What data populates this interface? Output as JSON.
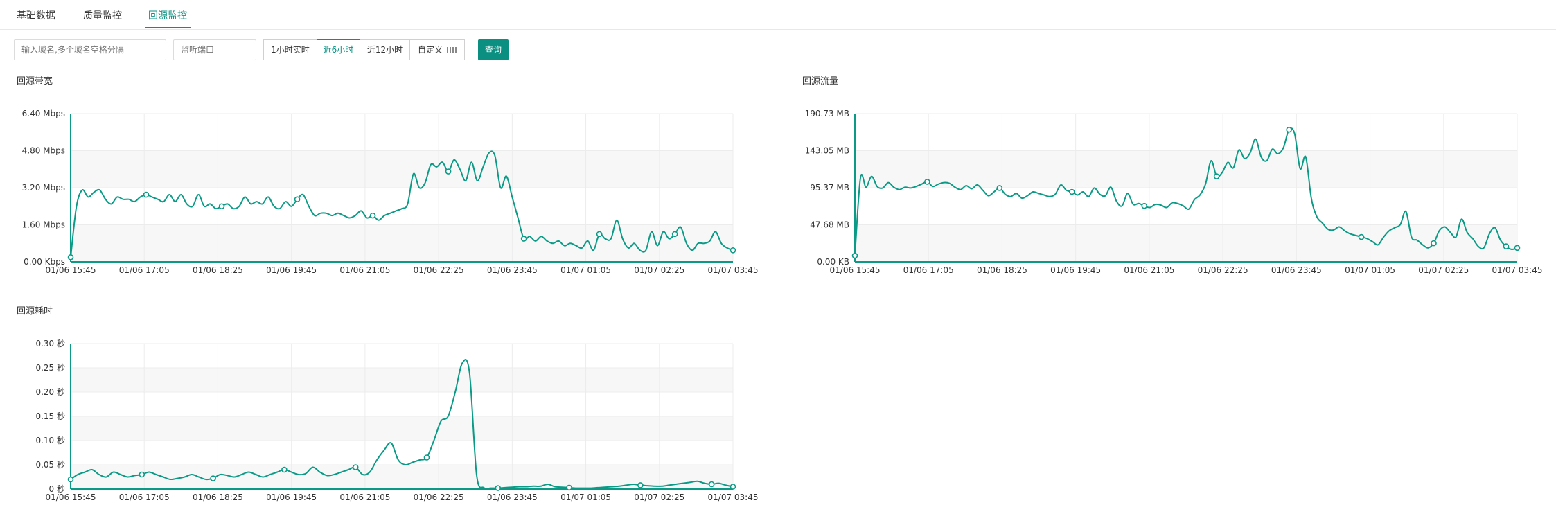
{
  "tabs": [
    {
      "label": "基础数据"
    },
    {
      "label": "质量监控"
    },
    {
      "label": "回源监控"
    }
  ],
  "active_tab": 2,
  "filters": {
    "domain_placeholder": "输入域名,多个域名空格分隔",
    "port_placeholder": "监听端口",
    "ranges": [
      "1小时实时",
      "近6小时",
      "近12小时",
      "自定义"
    ],
    "active_range": 1,
    "query_label": "查询"
  },
  "colors": {
    "accent": "#0a8f80",
    "line": "#0a9a86"
  },
  "chart_data": [
    {
      "type": "line",
      "title": "回源带宽",
      "x_ticks": [
        "01/06 15:45",
        "01/06 17:05",
        "01/06 18:25",
        "01/06 19:45",
        "01/06 21:05",
        "01/06 22:25",
        "01/06 23:45",
        "01/07 01:05",
        "01/07 02:25",
        "01/07 03:45"
      ],
      "y_ticks": [
        "0.00 Kbps",
        "1.60 Mbps",
        "3.20 Mbps",
        "4.80 Mbps",
        "6.40 Mbps"
      ],
      "ylim": [
        0,
        6.4
      ],
      "y_unit": "Mbps",
      "grid": true,
      "series": [
        {
          "values": [
            0.2,
            2.4,
            3.1,
            2.8,
            3.0,
            3.1,
            2.7,
            2.5,
            2.8,
            2.7,
            2.7,
            2.6,
            2.8,
            2.9,
            2.8,
            2.7,
            2.6,
            2.9,
            2.6,
            2.9,
            2.5,
            2.4,
            2.9,
            2.4,
            2.5,
            2.3,
            2.4,
            2.5,
            2.3,
            2.4,
            2.8,
            2.5,
            2.6,
            2.5,
            2.8,
            2.4,
            2.3,
            2.6,
            2.4,
            2.7,
            2.9,
            2.4,
            2.0,
            2.1,
            2.1,
            2.0,
            2.1,
            2.0,
            1.9,
            2.0,
            2.2,
            1.9,
            2.0,
            1.8,
            2.0,
            2.1,
            2.2,
            2.3,
            2.5,
            3.8,
            3.2,
            3.4,
            4.2,
            4.1,
            4.3,
            3.9,
            4.4,
            4.0,
            3.5,
            4.3,
            3.5,
            4.1,
            4.7,
            4.6,
            3.2,
            3.7,
            2.8,
            1.9,
            1.0,
            1.1,
            0.9,
            1.1,
            0.9,
            0.8,
            0.9,
            0.7,
            0.8,
            0.7,
            0.6,
            0.9,
            0.5,
            1.2,
            1.0,
            1.0,
            1.8,
            1.0,
            0.6,
            0.8,
            0.5,
            0.5,
            1.3,
            0.7,
            1.3,
            1.0,
            1.2,
            1.5,
            0.8,
            0.5,
            0.8,
            0.8,
            0.9,
            1.3,
            0.8,
            0.6,
            0.5
          ]
        }
      ],
      "markers": [
        0,
        16,
        32,
        48,
        64,
        80,
        96,
        112,
        128,
        144,
        160,
        176,
        192,
        208,
        224
      ]
    },
    {
      "type": "line",
      "title": "回源流量",
      "x_ticks": [
        "01/06 15:45",
        "01/06 17:05",
        "01/06 18:25",
        "01/06 19:45",
        "01/06 21:05",
        "01/06 22:25",
        "01/06 23:45",
        "01/07 01:05",
        "01/07 02:25",
        "01/07 03:45"
      ],
      "y_ticks": [
        "0.00 KB",
        "47.68 MB",
        "95.37 MB",
        "143.05 MB",
        "190.73 MB"
      ],
      "ylim": [
        0,
        190.73
      ],
      "y_unit": "MB",
      "grid": true,
      "series": [
        {
          "values": [
            8,
            108,
            96,
            110,
            97,
            95,
            102,
            96,
            93,
            96,
            95,
            97,
            100,
            103,
            97,
            100,
            102,
            101,
            96,
            93,
            98,
            94,
            99,
            92,
            85,
            90,
            95,
            87,
            84,
            88,
            82,
            85,
            90,
            88,
            86,
            84,
            87,
            99,
            92,
            90,
            86,
            90,
            84,
            95,
            87,
            85,
            96,
            78,
            72,
            88,
            74,
            75,
            72,
            70,
            74,
            73,
            70,
            76,
            75,
            72,
            68,
            80,
            86,
            100,
            130,
            110,
            115,
            128,
            121,
            144,
            133,
            140,
            158,
            135,
            130,
            145,
            139,
            147,
            170,
            165,
            120,
            135,
            82,
            58,
            50,
            42,
            41,
            45,
            40,
            36,
            34,
            32,
            30,
            26,
            22,
            32,
            40,
            44,
            48,
            65,
            32,
            28,
            22,
            18,
            24,
            40,
            45,
            38,
            32,
            55,
            38,
            30,
            20,
            18,
            36,
            44,
            28,
            20,
            16,
            18
          ]
        }
      ],
      "markers": [
        0,
        16,
        32,
        48,
        64,
        80,
        96,
        112,
        128,
        144,
        160,
        176,
        192,
        208,
        224
      ]
    },
    {
      "type": "line",
      "title": "回源耗时",
      "x_ticks": [
        "01/06 15:45",
        "01/06 17:05",
        "01/06 18:25",
        "01/06 19:45",
        "01/06 21:05",
        "01/06 22:25",
        "01/06 23:45",
        "01/07 01:05",
        "01/07 02:25",
        "01/07 03:45"
      ],
      "y_ticks": [
        "0 秒",
        "0.05 秒",
        "0.10 秒",
        "0.15 秒",
        "0.20 秒",
        "0.25 秒",
        "0.30 秒"
      ],
      "ylim": [
        0,
        0.3
      ],
      "y_unit": "秒",
      "grid": true,
      "series": [
        {
          "values": [
            0.02,
            0.03,
            0.035,
            0.04,
            0.03,
            0.025,
            0.035,
            0.03,
            0.025,
            0.028,
            0.03,
            0.035,
            0.03,
            0.025,
            0.02,
            0.022,
            0.025,
            0.03,
            0.025,
            0.02,
            0.022,
            0.03,
            0.028,
            0.025,
            0.03,
            0.035,
            0.03,
            0.025,
            0.03,
            0.035,
            0.04,
            0.035,
            0.03,
            0.032,
            0.045,
            0.035,
            0.028,
            0.03,
            0.035,
            0.04,
            0.045,
            0.03,
            0.035,
            0.06,
            0.08,
            0.095,
            0.06,
            0.05,
            0.055,
            0.06,
            0.065,
            0.1,
            0.14,
            0.15,
            0.2,
            0.26,
            0.24,
            0.03,
            0.003,
            0.002,
            0.002,
            0.003,
            0.004,
            0.005,
            0.005,
            0.006,
            0.006,
            0.01,
            0.005,
            0.004,
            0.003,
            0.002,
            0.002,
            0.002,
            0.003,
            0.004,
            0.005,
            0.006,
            0.008,
            0.01,
            0.008,
            0.007,
            0.006,
            0.006,
            0.008,
            0.01,
            0.012,
            0.014,
            0.016,
            0.012,
            0.01,
            0.012,
            0.008,
            0.005
          ]
        }
      ],
      "markers": [
        0,
        16,
        32,
        48,
        64,
        80,
        96,
        112,
        128,
        144,
        160,
        176,
        192,
        208,
        224
      ]
    }
  ]
}
